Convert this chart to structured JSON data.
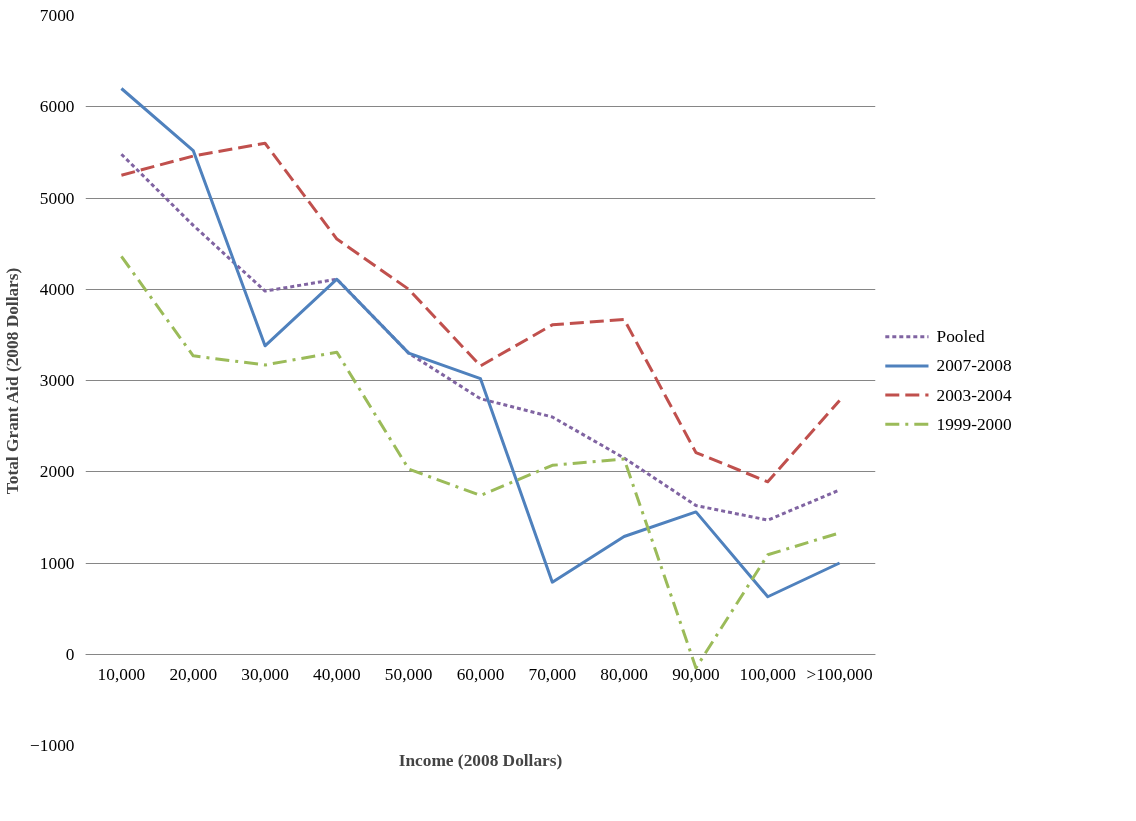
{
  "chart_data": {
    "type": "line",
    "xlabel": "Income (2008 Dollars)",
    "ylabel": "Total Grant Aid (2008 Dollars)",
    "categories": [
      "10,000",
      "20,000",
      "30,000",
      "40,000",
      "50,000",
      "60,000",
      "70,000",
      "80,000",
      "90,000",
      "100,000",
      ">100,000"
    ],
    "series": [
      {
        "name": "Pooled",
        "color": "#8064a2",
        "line_style": "dotted",
        "values": [
          5480,
          4700,
          3980,
          4110,
          3300,
          2800,
          2600,
          2150,
          1630,
          1470,
          1800
        ]
      },
      {
        "name": "2007-2008",
        "color": "#4f81bd",
        "line_style": "solid",
        "values": [
          6200,
          5520,
          3380,
          4110,
          3300,
          3020,
          790,
          1290,
          1560,
          630,
          1000
        ]
      },
      {
        "name": "2003-2004",
        "color": "#c0504d",
        "line_style": "dashed",
        "values": [
          5250,
          5460,
          5600,
          4550,
          4000,
          3160,
          3610,
          3670,
          2210,
          1890,
          2780
        ]
      },
      {
        "name": "1999-2000",
        "color": "#9bbb59",
        "line_style": "dashdot",
        "values": [
          4360,
          3270,
          3170,
          3310,
          2030,
          1740,
          2070,
          2140,
          -150,
          1090,
          1330
        ]
      }
    ],
    "ylim": [
      -1000,
      7000
    ],
    "yticks": [
      -1000,
      0,
      1000,
      2000,
      3000,
      4000,
      5000,
      6000,
      7000
    ],
    "grid": "y",
    "legend": "right"
  }
}
